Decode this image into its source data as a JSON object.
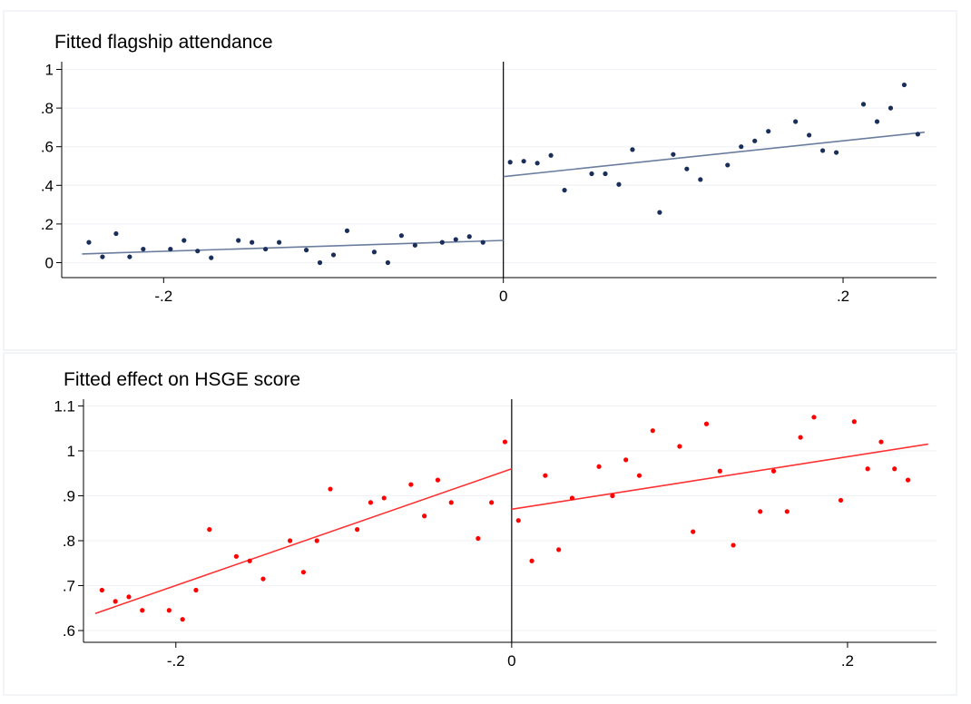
{
  "chart_data": [
    {
      "type": "scatter",
      "title": "Fitted flagship attendance",
      "xlabel": "",
      "ylabel": "",
      "xlim": [
        -0.26,
        0.255
      ],
      "ylim": [
        -0.04,
        1.04
      ],
      "x_ticks": [
        -0.2,
        0,
        0.2
      ],
      "x_tick_labels": [
        "-.2",
        "0",
        ".2"
      ],
      "y_ticks": [
        0,
        0.2,
        0.4,
        0.6,
        0.8,
        1
      ],
      "y_tick_labels": [
        "0",
        ".2",
        ".4",
        ".6",
        ".8",
        "1"
      ],
      "grid": true,
      "cutoff": 0,
      "point_color": "#1a2e5a",
      "line_color": "#6b7d9e",
      "points": [
        [
          -0.244,
          0.105
        ],
        [
          -0.236,
          0.03
        ],
        [
          -0.228,
          0.15
        ],
        [
          -0.22,
          0.03
        ],
        [
          -0.212,
          0.07
        ],
        [
          -0.196,
          0.07
        ],
        [
          -0.188,
          0.115
        ],
        [
          -0.18,
          0.06
        ],
        [
          -0.172,
          0.025
        ],
        [
          -0.156,
          0.115
        ],
        [
          -0.148,
          0.105
        ],
        [
          -0.14,
          0.07
        ],
        [
          -0.132,
          0.105
        ],
        [
          -0.116,
          0.065
        ],
        [
          -0.108,
          0.0
        ],
        [
          -0.1,
          0.04
        ],
        [
          -0.092,
          0.165
        ],
        [
          -0.076,
          0.055
        ],
        [
          -0.068,
          0.0
        ],
        [
          -0.06,
          0.14
        ],
        [
          -0.052,
          0.09
        ],
        [
          -0.036,
          0.105
        ],
        [
          -0.028,
          0.12
        ],
        [
          -0.02,
          0.135
        ],
        [
          -0.012,
          0.105
        ],
        [
          0.004,
          0.52
        ],
        [
          0.012,
          0.525
        ],
        [
          0.02,
          0.515
        ],
        [
          0.028,
          0.555
        ],
        [
          0.036,
          0.375
        ],
        [
          0.052,
          0.46
        ],
        [
          0.06,
          0.46
        ],
        [
          0.068,
          0.405
        ],
        [
          0.076,
          0.585
        ],
        [
          0.092,
          0.26
        ],
        [
          0.1,
          0.56
        ],
        [
          0.108,
          0.485
        ],
        [
          0.116,
          0.43
        ],
        [
          0.132,
          0.505
        ],
        [
          0.14,
          0.6
        ],
        [
          0.148,
          0.63
        ],
        [
          0.156,
          0.68
        ],
        [
          0.172,
          0.73
        ],
        [
          0.18,
          0.66
        ],
        [
          0.188,
          0.58
        ],
        [
          0.196,
          0.57
        ],
        [
          0.212,
          0.82
        ],
        [
          0.22,
          0.73
        ],
        [
          0.228,
          0.8
        ],
        [
          0.236,
          0.92
        ],
        [
          0.244,
          0.665
        ]
      ],
      "fit_lines": [
        {
          "x": [
            -0.248,
            0
          ],
          "y": [
            0.045,
            0.115
          ]
        },
        {
          "x": [
            0,
            0.248
          ],
          "y": [
            0.445,
            0.675
          ]
        }
      ]
    },
    {
      "type": "scatter",
      "title": "Fitted effect on HSGE score",
      "xlabel": "",
      "ylabel": "",
      "xlim": [
        -0.255,
        0.253
      ],
      "ylim": [
        0.59,
        1.115
      ],
      "x_ticks": [
        -0.2,
        0,
        0.2
      ],
      "x_tick_labels": [
        "-.2",
        "0",
        ".2"
      ],
      "y_ticks": [
        0.6,
        0.7,
        0.8,
        0.9,
        1,
        1.1
      ],
      "y_tick_labels": [
        ".6",
        ".7",
        ".8",
        ".9",
        "1",
        "1.1"
      ],
      "grid": true,
      "cutoff": 0,
      "point_color": "#ff0000",
      "line_color": "#ff3030",
      "points": [
        [
          -0.244,
          0.69
        ],
        [
          -0.236,
          0.665
        ],
        [
          -0.228,
          0.675
        ],
        [
          -0.22,
          0.645
        ],
        [
          -0.204,
          0.645
        ],
        [
          -0.196,
          0.625
        ],
        [
          -0.188,
          0.69
        ],
        [
          -0.18,
          0.825
        ],
        [
          -0.164,
          0.765
        ],
        [
          -0.156,
          0.755
        ],
        [
          -0.148,
          0.715
        ],
        [
          -0.132,
          0.8
        ],
        [
          -0.124,
          0.73
        ],
        [
          -0.116,
          0.8
        ],
        [
          -0.108,
          0.915
        ],
        [
          -0.092,
          0.825
        ],
        [
          -0.084,
          0.885
        ],
        [
          -0.076,
          0.895
        ],
        [
          -0.06,
          0.925
        ],
        [
          -0.052,
          0.855
        ],
        [
          -0.044,
          0.935
        ],
        [
          -0.036,
          0.885
        ],
        [
          -0.02,
          0.805
        ],
        [
          -0.012,
          0.885
        ],
        [
          -0.004,
          1.02
        ],
        [
          0.004,
          0.845
        ],
        [
          0.012,
          0.755
        ],
        [
          0.02,
          0.945
        ],
        [
          0.028,
          0.78
        ],
        [
          0.036,
          0.895
        ],
        [
          0.052,
          0.965
        ],
        [
          0.06,
          0.9
        ],
        [
          0.068,
          0.98
        ],
        [
          0.076,
          0.945
        ],
        [
          0.084,
          1.045
        ],
        [
          0.1,
          1.01
        ],
        [
          0.108,
          0.82
        ],
        [
          0.116,
          1.06
        ],
        [
          0.124,
          0.955
        ],
        [
          0.132,
          0.79
        ],
        [
          0.148,
          0.865
        ],
        [
          0.156,
          0.955
        ],
        [
          0.164,
          0.865
        ],
        [
          0.172,
          1.03
        ],
        [
          0.18,
          1.075
        ],
        [
          0.196,
          0.89
        ],
        [
          0.204,
          1.065
        ],
        [
          0.212,
          0.96
        ],
        [
          0.22,
          1.02
        ],
        [
          0.228,
          0.96
        ],
        [
          0.236,
          0.935
        ]
      ],
      "fit_lines": [
        {
          "x": [
            -0.248,
            0
          ],
          "y": [
            0.638,
            0.96
          ]
        },
        {
          "x": [
            0,
            0.248
          ],
          "y": [
            0.87,
            1.015
          ]
        }
      ]
    }
  ]
}
